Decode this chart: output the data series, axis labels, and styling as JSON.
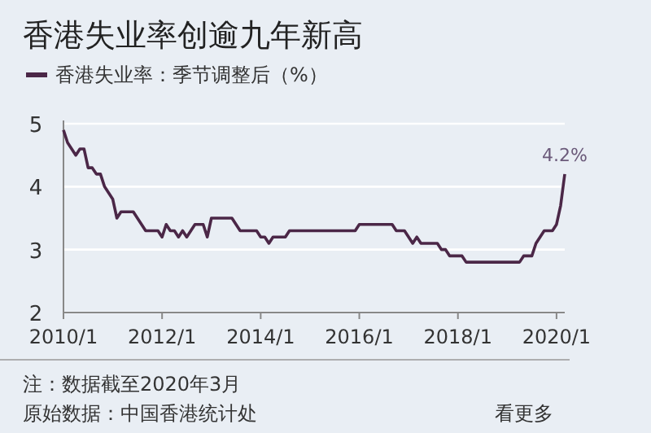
{
  "chart_data": {
    "type": "line",
    "title": "香港失业率创逾九年新高",
    "x": [
      "2010-01",
      "2010-02",
      "2010-03",
      "2010-04",
      "2010-05",
      "2010-06",
      "2010-07",
      "2010-08",
      "2010-09",
      "2010-10",
      "2010-11",
      "2010-12",
      "2011-01",
      "2011-02",
      "2011-03",
      "2011-04",
      "2011-05",
      "2011-06",
      "2011-07",
      "2011-08",
      "2011-09",
      "2011-10",
      "2011-11",
      "2011-12",
      "2012-01",
      "2012-02",
      "2012-03",
      "2012-04",
      "2012-05",
      "2012-06",
      "2012-07",
      "2012-08",
      "2012-09",
      "2012-10",
      "2012-11",
      "2012-12",
      "2013-01",
      "2013-02",
      "2013-03",
      "2013-04",
      "2013-05",
      "2013-06",
      "2013-07",
      "2013-08",
      "2013-09",
      "2013-10",
      "2013-11",
      "2013-12",
      "2014-01",
      "2014-02",
      "2014-03",
      "2014-04",
      "2014-05",
      "2014-06",
      "2014-07",
      "2014-08",
      "2015-12",
      "2016-01",
      "2016-09",
      "2016-10",
      "2016-12",
      "2017-01",
      "2017-02",
      "2017-03",
      "2017-04",
      "2017-06",
      "2017-08",
      "2017-09",
      "2017-10",
      "2017-11",
      "2017-12",
      "2018-01",
      "2018-02",
      "2018-03",
      "2019-04",
      "2019-05",
      "2019-07",
      "2019-08",
      "2019-09",
      "2019-10",
      "2019-12",
      "2020-01",
      "2020-02",
      "2020-03"
    ],
    "series": [
      {
        "name": "香港失业率：季节调整后（%）",
        "color": "#4b2747",
        "values": [
          4.9,
          4.7,
          4.6,
          4.5,
          4.6,
          4.6,
          4.3,
          4.3,
          4.2,
          4.2,
          4.0,
          3.9,
          3.8,
          3.5,
          3.6,
          3.6,
          3.6,
          3.6,
          3.5,
          3.4,
          3.3,
          3.3,
          3.3,
          3.3,
          3.2,
          3.4,
          3.3,
          3.3,
          3.2,
          3.3,
          3.2,
          3.3,
          3.4,
          3.4,
          3.4,
          3.2,
          3.5,
          3.5,
          3.5,
          3.5,
          3.5,
          3.5,
          3.4,
          3.3,
          3.3,
          3.3,
          3.3,
          3.3,
          3.2,
          3.2,
          3.1,
          3.2,
          3.2,
          3.2,
          3.2,
          3.3,
          3.3,
          3.4,
          3.4,
          3.3,
          3.3,
          3.2,
          3.1,
          3.2,
          3.1,
          3.1,
          3.1,
          3.0,
          3.0,
          2.9,
          2.9,
          2.9,
          2.9,
          2.8,
          2.8,
          2.9,
          2.9,
          3.1,
          3.2,
          3.3,
          3.3,
          3.4,
          3.7,
          4.2
        ]
      }
    ],
    "xlim": [
      "2010-01",
      "2020-03"
    ],
    "xticks": [
      {
        "value": "2010-01",
        "label": "2010/1"
      },
      {
        "value": "2012-01",
        "label": "2012/1"
      },
      {
        "value": "2014-01",
        "label": "2014/1"
      },
      {
        "value": "2016-01",
        "label": "2016/1"
      },
      {
        "value": "2018-01",
        "label": "2018/1"
      },
      {
        "value": "2020-01",
        "label": "2020/1"
      }
    ],
    "ylim": [
      2,
      5
    ],
    "yticks": [
      2,
      3,
      4,
      5
    ],
    "grid": "y",
    "legend": "top left",
    "annotations": [
      {
        "text": "4.2%",
        "x": "2020-03",
        "y": 4.2
      },
      "注：数据截至2020年3月",
      "原始数据：中国香港统计处",
      "看更多"
    ]
  }
}
